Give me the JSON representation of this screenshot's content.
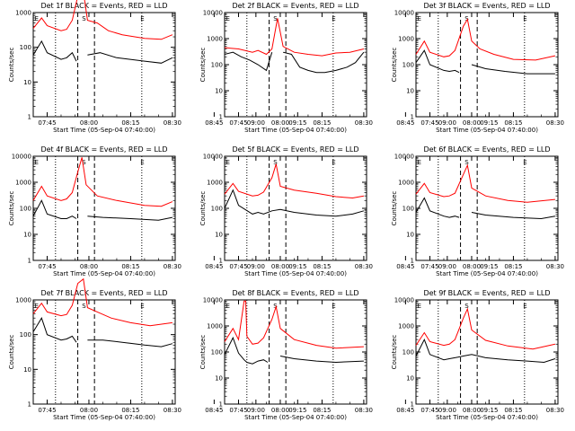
{
  "chart_data": {
    "type": "line",
    "grid_layout": "3x3",
    "y_scale": "log",
    "ylim": [
      1,
      10000
    ],
    "ylabel": "Counts/sec",
    "xlabel": "Start Time (05-Sep-04 07:40:00)",
    "x_ticks": [
      "07:45",
      "08:00",
      "08:15",
      "08:30",
      "08:45",
      "09:00",
      "09:15"
    ],
    "series_colors": {
      "events": "#000000",
      "lld": "#ff0000"
    },
    "panels": [
      {
        "title": "Det 1f BLACK = Events, RED = LLD",
        "markers": [
          "E",
          "S",
          "E"
        ],
        "ymax_label": "1000",
        "y_ticks": [
          "1000",
          "100",
          "10",
          "1"
        ],
        "lld": [
          [
            0,
            350
          ],
          [
            3,
            700
          ],
          [
            5,
            420
          ],
          [
            10,
            300
          ],
          [
            12,
            330
          ],
          [
            14,
            600
          ],
          [
            16,
            3000
          ],
          [
            18,
            4000
          ],
          [
            19.5,
            600
          ],
          [
            23,
            500
          ],
          [
            27,
            300
          ],
          [
            32,
            230
          ],
          [
            40,
            180
          ],
          [
            46,
            170
          ],
          [
            50,
            230
          ]
        ],
        "events": [
          [
            0,
            60
          ],
          [
            3,
            150
          ],
          [
            5,
            70
          ],
          [
            10,
            45
          ],
          [
            12,
            50
          ],
          [
            14,
            70
          ],
          [
            15.5,
            40
          ],
          [
            15.5,
            null
          ],
          [
            19.5,
            null
          ],
          [
            19.5,
            60
          ],
          [
            24,
            70
          ],
          [
            30,
            50
          ],
          [
            40,
            40
          ],
          [
            46,
            35
          ],
          [
            50,
            50
          ]
        ]
      },
      {
        "title": "Det 2f BLACK = Events, RED = LLD",
        "markers": [
          "E",
          "S",
          "E"
        ],
        "ymax_label": "10000",
        "y_ticks": [
          "10000",
          "1000",
          "100",
          "10",
          "1"
        ],
        "lld": [
          [
            0,
            450
          ],
          [
            5,
            400
          ],
          [
            10,
            300
          ],
          [
            12,
            350
          ],
          [
            15,
            250
          ],
          [
            17,
            400
          ],
          [
            19,
            6000
          ],
          [
            21,
            500
          ],
          [
            25,
            300
          ],
          [
            30,
            250
          ],
          [
            35,
            220
          ],
          [
            40,
            280
          ],
          [
            45,
            300
          ],
          [
            50,
            400
          ]
        ],
        "events": [
          [
            0,
            250
          ],
          [
            3,
            300
          ],
          [
            6,
            200
          ],
          [
            9,
            150
          ],
          [
            12,
            100
          ],
          [
            15,
            60
          ],
          [
            17,
            300
          ],
          [
            18,
            null
          ],
          [
            20,
            null
          ],
          [
            21,
            300
          ],
          [
            24,
            250
          ],
          [
            27,
            80
          ],
          [
            30,
            60
          ],
          [
            33,
            50
          ],
          [
            36,
            50
          ],
          [
            40,
            60
          ],
          [
            44,
            80
          ],
          [
            47,
            120
          ],
          [
            50,
            300
          ]
        ]
      },
      {
        "title": "Det 3f BLACK = Events, RED = LLD",
        "markers": [
          "E",
          "S",
          "E"
        ],
        "ymax_label": "10000",
        "y_ticks": [
          "10000",
          "1000",
          "100",
          "10",
          "1"
        ],
        "lld": [
          [
            0,
            250
          ],
          [
            3,
            800
          ],
          [
            5,
            300
          ],
          [
            10,
            200
          ],
          [
            12,
            220
          ],
          [
            14,
            350
          ],
          [
            17,
            3000
          ],
          [
            18.5,
            5500
          ],
          [
            20,
            800
          ],
          [
            23,
            400
          ],
          [
            28,
            250
          ],
          [
            35,
            160
          ],
          [
            43,
            150
          ],
          [
            50,
            220
          ]
        ],
        "events": [
          [
            0,
            120
          ],
          [
            3,
            350
          ],
          [
            5,
            100
          ],
          [
            10,
            60
          ],
          [
            12,
            55
          ],
          [
            14,
            60
          ],
          [
            15.5,
            50
          ],
          [
            15.5,
            null
          ],
          [
            20,
            null
          ],
          [
            20,
            100
          ],
          [
            25,
            70
          ],
          [
            32,
            55
          ],
          [
            40,
            45
          ],
          [
            50,
            45
          ]
        ]
      },
      {
        "title": "Det 4f BLACK = Events, RED = LLD",
        "markers": [
          "E",
          "S",
          "E"
        ],
        "ymax_label": "10000",
        "y_ticks": [
          "10000",
          "1000",
          "100",
          "10",
          "1"
        ],
        "lld": [
          [
            0,
            200
          ],
          [
            3,
            700
          ],
          [
            5,
            300
          ],
          [
            10,
            200
          ],
          [
            12,
            230
          ],
          [
            14,
            400
          ],
          [
            16,
            2500
          ],
          [
            17.5,
            9000
          ],
          [
            19,
            800
          ],
          [
            23,
            300
          ],
          [
            30,
            200
          ],
          [
            40,
            130
          ],
          [
            46,
            120
          ],
          [
            50,
            180
          ]
        ],
        "events": [
          [
            0,
            50
          ],
          [
            3,
            200
          ],
          [
            5,
            60
          ],
          [
            10,
            40
          ],
          [
            12,
            40
          ],
          [
            14,
            50
          ],
          [
            15.5,
            40
          ],
          [
            15.5,
            null
          ],
          [
            19.5,
            null
          ],
          [
            19.5,
            50
          ],
          [
            25,
            45
          ],
          [
            35,
            40
          ],
          [
            45,
            35
          ],
          [
            50,
            45
          ]
        ]
      },
      {
        "title": "Det 5f BLACK = Events, RED = LLD",
        "markers": [
          "E",
          "S",
          "E"
        ],
        "ymax_label": "10000",
        "y_ticks": [
          "10000",
          "1000",
          "100",
          "10",
          "1"
        ],
        "lld": [
          [
            0,
            350
          ],
          [
            3,
            900
          ],
          [
            5,
            450
          ],
          [
            10,
            300
          ],
          [
            12,
            320
          ],
          [
            14,
            420
          ],
          [
            17,
            1500
          ],
          [
            18.5,
            5000
          ],
          [
            20,
            700
          ],
          [
            25,
            500
          ],
          [
            33,
            380
          ],
          [
            40,
            280
          ],
          [
            46,
            250
          ],
          [
            50,
            300
          ]
        ],
        "events": [
          [
            0,
            100
          ],
          [
            3,
            500
          ],
          [
            5,
            130
          ],
          [
            10,
            60
          ],
          [
            12,
            70
          ],
          [
            14,
            60
          ],
          [
            17,
            80
          ],
          [
            20,
            90
          ],
          [
            25,
            70
          ],
          [
            33,
            55
          ],
          [
            40,
            50
          ],
          [
            46,
            60
          ],
          [
            50,
            80
          ]
        ]
      },
      {
        "title": "Det 6f BLACK = Events, RED = LLD",
        "markers": [
          "E",
          "S",
          "E"
        ],
        "ymax_label": "10000",
        "y_ticks": [
          "10000",
          "1000",
          "100",
          "10",
          "1"
        ],
        "lld": [
          [
            0,
            350
          ],
          [
            3,
            900
          ],
          [
            5,
            400
          ],
          [
            10,
            280
          ],
          [
            12,
            300
          ],
          [
            14,
            380
          ],
          [
            17,
            2000
          ],
          [
            18.5,
            4500
          ],
          [
            20,
            600
          ],
          [
            25,
            300
          ],
          [
            33,
            200
          ],
          [
            40,
            170
          ],
          [
            50,
            220
          ]
        ],
        "events": [
          [
            0,
            70
          ],
          [
            3,
            250
          ],
          [
            5,
            80
          ],
          [
            10,
            50
          ],
          [
            12,
            45
          ],
          [
            14,
            50
          ],
          [
            15.5,
            45
          ],
          [
            15.5,
            null
          ],
          [
            20,
            null
          ],
          [
            20,
            70
          ],
          [
            25,
            55
          ],
          [
            35,
            45
          ],
          [
            45,
            40
          ],
          [
            50,
            50
          ]
        ]
      },
      {
        "title": "Det 7f BLACK = Events, RED = LLD",
        "markers": [
          "E",
          "S",
          "E"
        ],
        "ymax_label": "1000",
        "y_ticks": [
          "1000",
          "100",
          "10",
          "1"
        ],
        "lld": [
          [
            0,
            400
          ],
          [
            3,
            800
          ],
          [
            5,
            450
          ],
          [
            10,
            350
          ],
          [
            12,
            380
          ],
          [
            14,
            700
          ],
          [
            16,
            3000
          ],
          [
            18,
            4000
          ],
          [
            19.5,
            600
          ],
          [
            23,
            450
          ],
          [
            28,
            300
          ],
          [
            35,
            220
          ],
          [
            42,
            180
          ],
          [
            50,
            220
          ]
        ],
        "events": [
          [
            0,
            120
          ],
          [
            3,
            300
          ],
          [
            5,
            100
          ],
          [
            10,
            70
          ],
          [
            12,
            75
          ],
          [
            14,
            90
          ],
          [
            15.5,
            60
          ],
          [
            15.5,
            null
          ],
          [
            19.5,
            null
          ],
          [
            19.5,
            70
          ],
          [
            25,
            70
          ],
          [
            32,
            60
          ],
          [
            40,
            50
          ],
          [
            46,
            45
          ],
          [
            50,
            55
          ]
        ]
      },
      {
        "title": "Det 8f BLACK = Events, RED = LLD",
        "markers": [
          "E",
          "S",
          "E"
        ],
        "ymax_label": "10000",
        "y_ticks": [
          "10000",
          "1000",
          "100",
          "10",
          "1"
        ],
        "lld": [
          [
            0,
            250
          ],
          [
            3,
            800
          ],
          [
            5,
            300
          ],
          [
            7,
            9000
          ],
          [
            7.6,
            9000
          ],
          [
            8,
            400
          ],
          [
            10,
            200
          ],
          [
            12,
            220
          ],
          [
            14,
            350
          ],
          [
            17,
            1800
          ],
          [
            18.5,
            5500
          ],
          [
            20,
            800
          ],
          [
            25,
            300
          ],
          [
            33,
            180
          ],
          [
            40,
            140
          ],
          [
            50,
            160
          ]
        ],
        "events": [
          [
            0,
            80
          ],
          [
            3,
            350
          ],
          [
            5,
            90
          ],
          [
            7,
            50
          ],
          [
            8,
            40
          ],
          [
            10,
            35
          ],
          [
            12,
            45
          ],
          [
            14,
            50
          ],
          [
            15.5,
            40
          ],
          [
            15.5,
            null
          ],
          [
            20,
            null
          ],
          [
            20,
            70
          ],
          [
            25,
            55
          ],
          [
            33,
            45
          ],
          [
            40,
            40
          ],
          [
            50,
            45
          ]
        ]
      },
      {
        "title": "Det 9f BLACK = Events, RED = LLD",
        "markers": [
          "E",
          "S",
          "E"
        ],
        "ymax_label": "10000",
        "y_ticks": [
          "10000",
          "1000",
          "100",
          "10",
          "1"
        ],
        "lld": [
          [
            0,
            180
          ],
          [
            3,
            550
          ],
          [
            5,
            250
          ],
          [
            10,
            180
          ],
          [
            12,
            200
          ],
          [
            14,
            300
          ],
          [
            17,
            2000
          ],
          [
            18.5,
            4500
          ],
          [
            20,
            700
          ],
          [
            25,
            280
          ],
          [
            33,
            170
          ],
          [
            42,
            130
          ],
          [
            50,
            200
          ]
        ],
        "events": [
          [
            0,
            70
          ],
          [
            3,
            300
          ],
          [
            5,
            80
          ],
          [
            10,
            50
          ],
          [
            12,
            55
          ],
          [
            14,
            60
          ],
          [
            17,
            70
          ],
          [
            20,
            80
          ],
          [
            25,
            60
          ],
          [
            33,
            50
          ],
          [
            40,
            45
          ],
          [
            46,
            40
          ],
          [
            50,
            55
          ]
        ]
      }
    ]
  }
}
